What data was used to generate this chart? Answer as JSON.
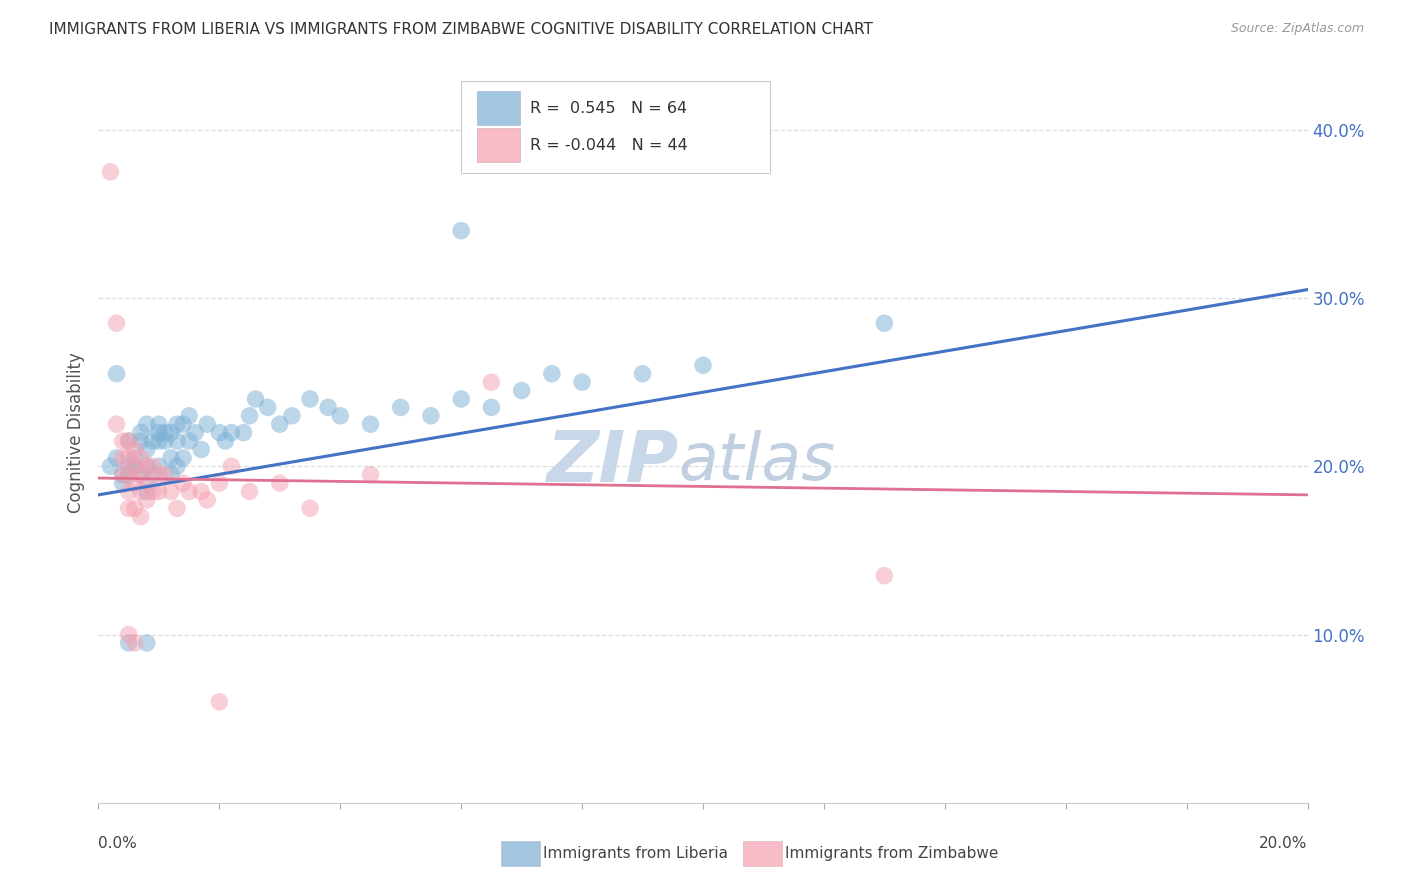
{
  "title": "IMMIGRANTS FROM LIBERIA VS IMMIGRANTS FROM ZIMBABWE COGNITIVE DISABILITY CORRELATION CHART",
  "source": "Source: ZipAtlas.com",
  "ylabel": "Cognitive Disability",
  "ytick_labels": [
    "10.0%",
    "20.0%",
    "30.0%",
    "40.0%"
  ],
  "ytick_values": [
    0.1,
    0.2,
    0.3,
    0.4
  ],
  "xlim": [
    0.0,
    0.2
  ],
  "ylim": [
    0.0,
    0.44
  ],
  "legend_blue_r": "0.545",
  "legend_blue_n": "64",
  "legend_pink_r": "-0.044",
  "legend_pink_n": "44",
  "blue_color": "#7BAFD4",
  "pink_color": "#F4A0B0",
  "blue_line_color": "#4472C4",
  "pink_line_color": "#E07090",
  "blue_scatter": [
    [
      0.002,
      0.2
    ],
    [
      0.003,
      0.205
    ],
    [
      0.004,
      0.195
    ],
    [
      0.004,
      0.19
    ],
    [
      0.005,
      0.2
    ],
    [
      0.005,
      0.215
    ],
    [
      0.005,
      0.195
    ],
    [
      0.006,
      0.205
    ],
    [
      0.006,
      0.2
    ],
    [
      0.007,
      0.22
    ],
    [
      0.007,
      0.215
    ],
    [
      0.007,
      0.195
    ],
    [
      0.008,
      0.225
    ],
    [
      0.008,
      0.21
    ],
    [
      0.008,
      0.2
    ],
    [
      0.008,
      0.185
    ],
    [
      0.009,
      0.215
    ],
    [
      0.009,
      0.195
    ],
    [
      0.01,
      0.225
    ],
    [
      0.01,
      0.22
    ],
    [
      0.01,
      0.215
    ],
    [
      0.01,
      0.2
    ],
    [
      0.011,
      0.22
    ],
    [
      0.011,
      0.215
    ],
    [
      0.012,
      0.22
    ],
    [
      0.012,
      0.205
    ],
    [
      0.012,
      0.195
    ],
    [
      0.013,
      0.225
    ],
    [
      0.013,
      0.215
    ],
    [
      0.013,
      0.2
    ],
    [
      0.014,
      0.225
    ],
    [
      0.014,
      0.205
    ],
    [
      0.015,
      0.23
    ],
    [
      0.015,
      0.215
    ],
    [
      0.016,
      0.22
    ],
    [
      0.017,
      0.21
    ],
    [
      0.018,
      0.225
    ],
    [
      0.02,
      0.22
    ],
    [
      0.021,
      0.215
    ],
    [
      0.022,
      0.22
    ],
    [
      0.024,
      0.22
    ],
    [
      0.025,
      0.23
    ],
    [
      0.026,
      0.24
    ],
    [
      0.028,
      0.235
    ],
    [
      0.03,
      0.225
    ],
    [
      0.032,
      0.23
    ],
    [
      0.035,
      0.24
    ],
    [
      0.038,
      0.235
    ],
    [
      0.04,
      0.23
    ],
    [
      0.045,
      0.225
    ],
    [
      0.05,
      0.235
    ],
    [
      0.055,
      0.23
    ],
    [
      0.06,
      0.24
    ],
    [
      0.065,
      0.235
    ],
    [
      0.07,
      0.245
    ],
    [
      0.075,
      0.255
    ],
    [
      0.08,
      0.25
    ],
    [
      0.09,
      0.255
    ],
    [
      0.1,
      0.26
    ],
    [
      0.003,
      0.255
    ],
    [
      0.06,
      0.34
    ],
    [
      0.13,
      0.285
    ],
    [
      0.005,
      0.095
    ],
    [
      0.008,
      0.095
    ]
  ],
  "pink_scatter": [
    [
      0.002,
      0.375
    ],
    [
      0.003,
      0.285
    ],
    [
      0.003,
      0.225
    ],
    [
      0.004,
      0.215
    ],
    [
      0.004,
      0.205
    ],
    [
      0.004,
      0.195
    ],
    [
      0.005,
      0.215
    ],
    [
      0.005,
      0.205
    ],
    [
      0.005,
      0.195
    ],
    [
      0.005,
      0.185
    ],
    [
      0.005,
      0.175
    ],
    [
      0.006,
      0.21
    ],
    [
      0.006,
      0.2
    ],
    [
      0.006,
      0.19
    ],
    [
      0.006,
      0.175
    ],
    [
      0.007,
      0.205
    ],
    [
      0.007,
      0.195
    ],
    [
      0.007,
      0.185
    ],
    [
      0.007,
      0.17
    ],
    [
      0.008,
      0.2
    ],
    [
      0.008,
      0.19
    ],
    [
      0.008,
      0.18
    ],
    [
      0.009,
      0.2
    ],
    [
      0.009,
      0.185
    ],
    [
      0.01,
      0.195
    ],
    [
      0.01,
      0.185
    ],
    [
      0.011,
      0.195
    ],
    [
      0.012,
      0.185
    ],
    [
      0.013,
      0.175
    ],
    [
      0.014,
      0.19
    ],
    [
      0.015,
      0.185
    ],
    [
      0.017,
      0.185
    ],
    [
      0.018,
      0.18
    ],
    [
      0.02,
      0.19
    ],
    [
      0.022,
      0.2
    ],
    [
      0.025,
      0.185
    ],
    [
      0.03,
      0.19
    ],
    [
      0.035,
      0.175
    ],
    [
      0.045,
      0.195
    ],
    [
      0.065,
      0.25
    ],
    [
      0.13,
      0.135
    ],
    [
      0.005,
      0.1
    ],
    [
      0.006,
      0.095
    ],
    [
      0.02,
      0.06
    ]
  ],
  "background_color": "#FFFFFF",
  "grid_color": "#DDDDDD",
  "watermark_zip_color": "#C8D8E8",
  "watermark_atlas_color": "#C0D0E0",
  "watermark_fontsize": 52
}
